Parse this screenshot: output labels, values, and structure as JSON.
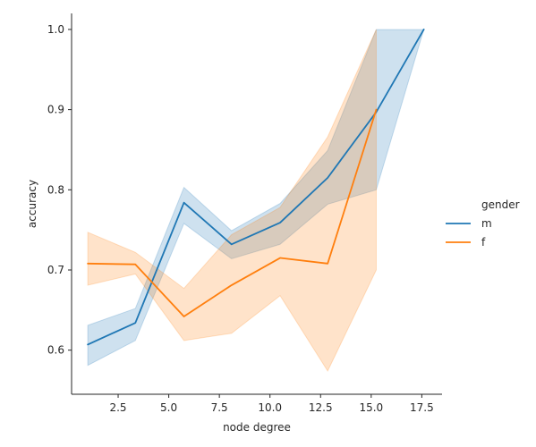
{
  "chart_data": {
    "type": "line",
    "title": "",
    "xlabel": "node degree",
    "ylabel": "accuracy",
    "xlim": [
      0.2,
      18.5
    ],
    "ylim": [
      0.545,
      1.02
    ],
    "xticks": [
      2.5,
      5.0,
      7.5,
      10.0,
      12.5,
      15.0,
      17.5
    ],
    "xtick_labels": [
      "2.5",
      "5.0",
      "7.5",
      "10.0",
      "12.5",
      "15.0",
      "17.5"
    ],
    "yticks": [
      0.6,
      0.7,
      0.8,
      0.9,
      1.0
    ],
    "ytick_labels": [
      "0.6",
      "0.7",
      "0.8",
      "0.9",
      "1.0"
    ],
    "grid": false,
    "legend": {
      "title": "gender",
      "placement": "right"
    },
    "series": [
      {
        "name": "m",
        "color": "#1f77b4",
        "x": [
          1.0,
          3.35,
          5.75,
          8.1,
          10.5,
          12.85,
          15.25,
          17.6
        ],
        "y": [
          0.607,
          0.634,
          0.784,
          0.732,
          0.759,
          0.815,
          0.897,
          1.0
        ],
        "ci_low": [
          0.581,
          0.612,
          0.758,
          0.714,
          0.732,
          0.782,
          0.8,
          1.0
        ],
        "ci_high": [
          0.631,
          0.652,
          0.803,
          0.749,
          0.783,
          0.849,
          1.0,
          1.0
        ]
      },
      {
        "name": "f",
        "color": "#ff7f0e",
        "x": [
          1.0,
          3.35,
          5.75,
          8.1,
          10.5,
          12.85,
          15.25
        ],
        "y": [
          0.708,
          0.707,
          0.642,
          0.681,
          0.715,
          0.708,
          0.9
        ],
        "ci_low": [
          0.681,
          0.695,
          0.612,
          0.621,
          0.668,
          0.574,
          0.7
        ],
        "ci_high": [
          0.747,
          0.722,
          0.677,
          0.744,
          0.778,
          0.866,
          1.0
        ]
      }
    ]
  }
}
